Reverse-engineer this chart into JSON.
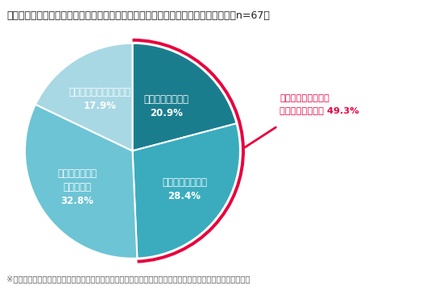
{
  "title": "【設問２】仕入れの際に、訪日外国人旅行者のニーズがあるか意識していますか？（n=67）",
  "footnote": "※【設問２】以降のｎ数は【設問１】で「訪日外国人観光客の方が買い物されること」が「ある」と回答した数",
  "slices": [
    {
      "label": "常に意識している",
      "value": 20.9,
      "color": "#1a7d8e"
    },
    {
      "label": "時々意識している",
      "value": 28.4,
      "color": "#3aacbe"
    },
    {
      "label": "意識することは\nあまりない",
      "value": 32.8,
      "color": "#6dc4d4"
    },
    {
      "label": "まったく意識していない",
      "value": 17.9,
      "color": "#a8d8e4"
    }
  ],
  "highlight_label_line1": "常に意識している／",
  "highlight_label_line2": "時々意識している 49.3%",
  "highlight_color": "#e8003d",
  "background_color": "#ffffff",
  "title_fontsize": 9.0,
  "label_fontsize": 8.5,
  "footnote_fontsize": 7.2
}
